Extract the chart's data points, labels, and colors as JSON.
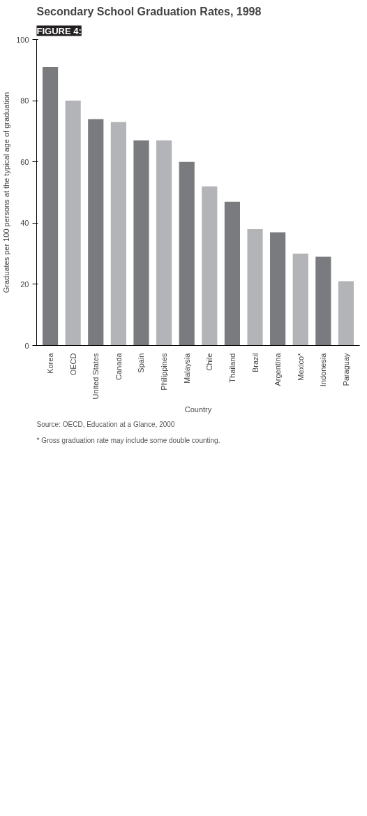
{
  "chart_data": {
    "type": "bar",
    "title": "Secondary School Graduation Rates, 1998",
    "subtitle": "FIGURE 4:",
    "categories": [
      "Korea",
      "OECD",
      "United States",
      "Canada",
      "Spain",
      "Philippines",
      "Malaysia",
      "Chile",
      "Thailand",
      "Brazil",
      "Argentina",
      "Mexico*",
      "Indonesia",
      "Paraguay"
    ],
    "values": [
      91,
      80,
      74,
      73,
      67,
      67,
      60,
      52,
      47,
      38,
      37,
      30,
      29,
      21
    ],
    "colors": [
      "#7a7b7e",
      "#b3b4b7",
      "#7a7b7e",
      "#b3b4b7",
      "#7a7b7e",
      "#b3b4b7",
      "#7a7b7e",
      "#b3b4b7",
      "#7a7b7e",
      "#b3b4b7",
      "#7a7b7e",
      "#b3b4b7",
      "#7a7b7e",
      "#b3b4b7"
    ],
    "xlabel": "Country",
    "ylabel": "Graduates per 100 persons at the typical age of graduation",
    "ylim": [
      0,
      100
    ],
    "yticks": [
      0,
      20,
      40,
      60,
      80,
      100
    ],
    "grid": false,
    "annotations": [
      "* Gross graduation rate may include some double counting.",
      "Source: OECD, Education at a Glance, 2000"
    ]
  }
}
